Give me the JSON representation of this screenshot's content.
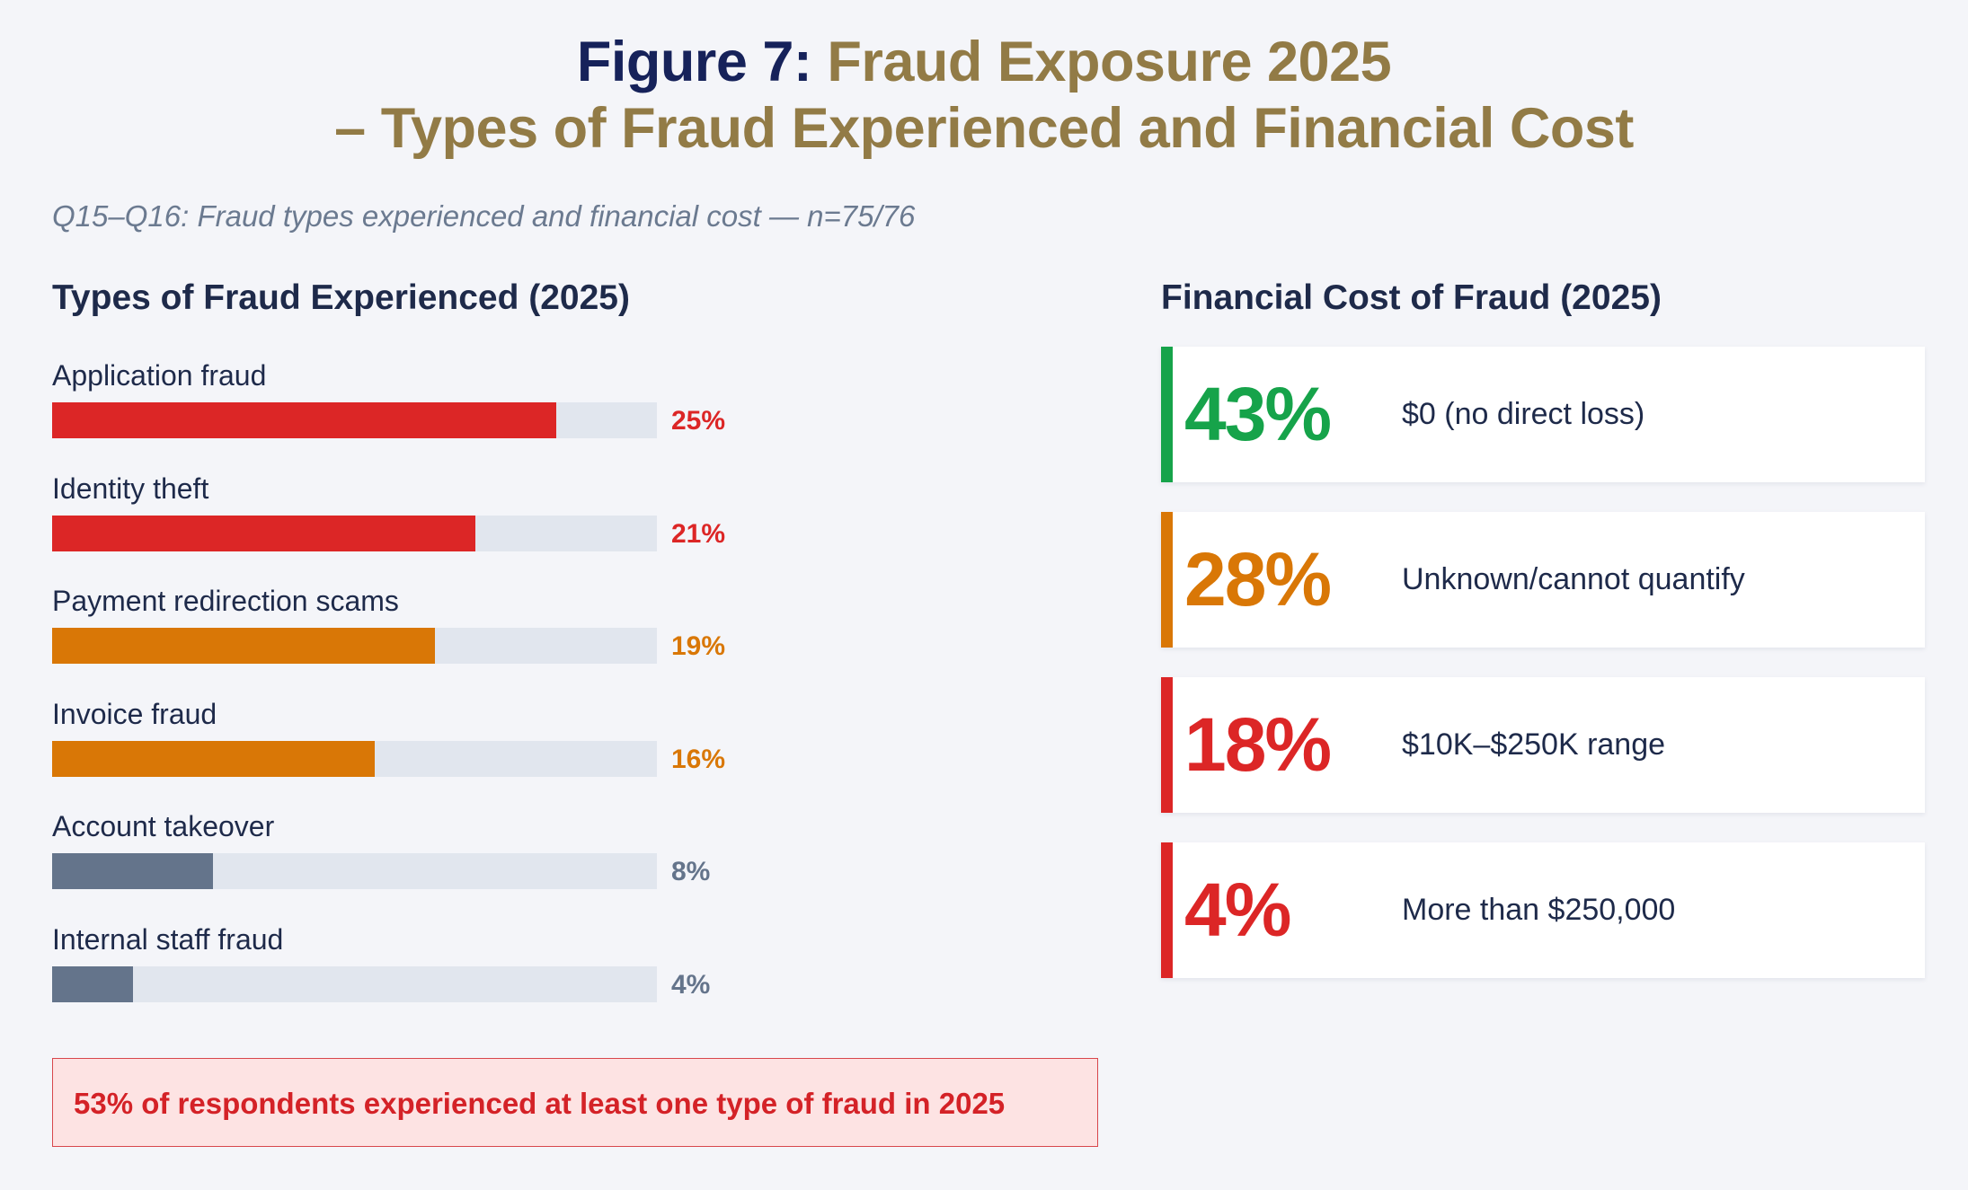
{
  "title": {
    "lead": "Figure 7:",
    "line1": "Fraud Exposure 2025",
    "line2": "– Types of Fraud Experienced and Financial Cost"
  },
  "subtitle": "Q15–Q16: Fraud types experienced and financial cost — n=75/76",
  "colors": {
    "red": "#dc2626",
    "orange": "#d97706",
    "slate": "#64748b",
    "green": "#16a34a",
    "title_navy": "#16225a",
    "title_gold": "#927b46",
    "track": "#e1e6ee"
  },
  "chart_data": [
    {
      "type": "bar",
      "orientation": "horizontal",
      "title": "Types of Fraud Experienced (2025)",
      "categories": [
        "Application fraud",
        "Identity theft",
        "Payment redirection scams",
        "Invoice fraud",
        "Account takeover",
        "Internal staff fraud"
      ],
      "values": [
        25,
        21,
        19,
        16,
        8,
        4
      ],
      "value_labels": [
        "25%",
        "21%",
        "19%",
        "16%",
        "8%",
        "4%"
      ],
      "bar_colors": [
        "red",
        "red",
        "orange",
        "orange",
        "slate",
        "slate"
      ],
      "xlim": [
        0,
        30
      ],
      "unit": "%",
      "grid": false,
      "legend": "none"
    },
    {
      "type": "table",
      "title": "Financial Cost of Fraud (2025)",
      "rows": [
        {
          "value": 43,
          "label_pct": "43%",
          "label": "$0 (no direct loss)",
          "color": "green"
        },
        {
          "value": 28,
          "label_pct": "28%",
          "label": "Unknown/cannot quantify",
          "color": "orange"
        },
        {
          "value": 18,
          "label_pct": "18%",
          "label": "$10K–$250K range",
          "color": "red"
        },
        {
          "value": 4,
          "label_pct": "4%",
          "label": "More than $250,000",
          "color": "red"
        }
      ]
    }
  ],
  "callout": "53% of respondents experienced at least one type of fraud in 2025"
}
